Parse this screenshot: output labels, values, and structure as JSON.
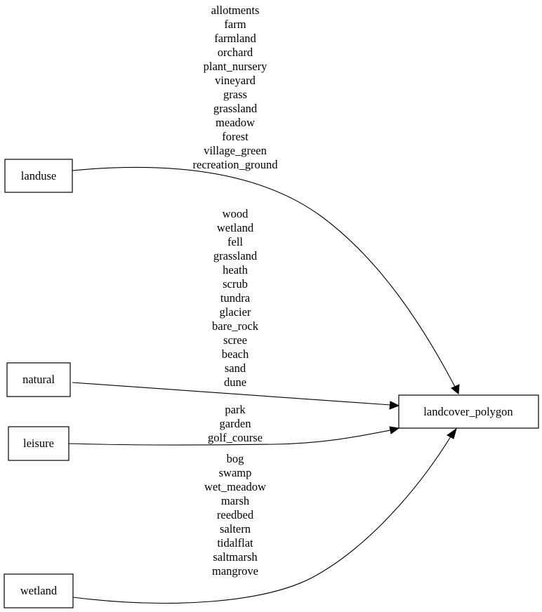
{
  "nodes": {
    "landuse": "landuse",
    "natural": "natural",
    "leisure": "leisure",
    "wetland": "wetland",
    "target": "landcover_polygon"
  },
  "edges": [
    {
      "from": "landuse",
      "to": "landcover_polygon",
      "labels": [
        "allotments",
        "farm",
        "farmland",
        "orchard",
        "plant_nursery",
        "vineyard",
        "grass",
        "grassland",
        "meadow",
        "forest",
        "village_green",
        "recreation_ground"
      ]
    },
    {
      "from": "natural",
      "to": "landcover_polygon",
      "labels": [
        "wood",
        "wetland",
        "fell",
        "grassland",
        "heath",
        "scrub",
        "tundra",
        "glacier",
        "bare_rock",
        "scree",
        "beach",
        "sand",
        "dune"
      ]
    },
    {
      "from": "leisure",
      "to": "landcover_polygon",
      "labels": [
        "park",
        "garden",
        "golf_course"
      ]
    },
    {
      "from": "wetland",
      "to": "landcover_polygon",
      "labels": [
        "bog",
        "swamp",
        "wet_meadow",
        "marsh",
        "reedbed",
        "saltern",
        "tidalflat",
        "saltmarsh",
        "mangrove"
      ]
    }
  ]
}
